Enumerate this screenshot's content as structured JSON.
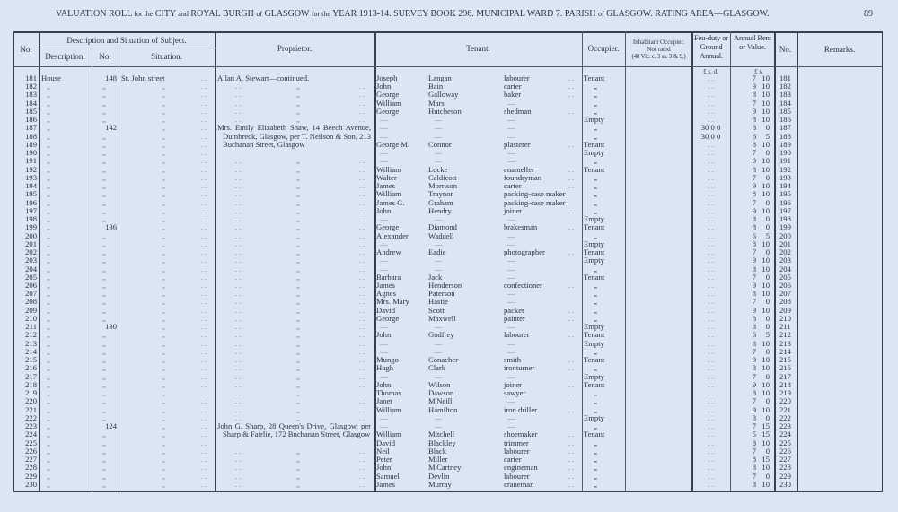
{
  "header": {
    "title_parts": [
      "VALUATION ROLL",
      "for the",
      "CITY",
      "and",
      "ROYAL BURGH",
      "of",
      "GLASGOW",
      "for the",
      "YEAR 1913-14.   SURVEY BOOK 296.   MUNICIPAL WARD 7.   PARISH",
      "of",
      "GLASGOW.   RATING AREA—GLASGOW."
    ],
    "page_number": "89"
  },
  "columns": {
    "no": "No.",
    "description_group": "Description and Situation of Subject.",
    "description": "Description.",
    "number": "No.",
    "situation": "Situation.",
    "proprietor": "Proprietor.",
    "tenant": "Tenant.",
    "occupier": "Occupier.",
    "inhabitant": "Inhabitant Occupier.",
    "inhabitant_sub1": "Not rated",
    "inhabitant_sub2": "(48 Vic. c. 3 ss. 3 & 9.)",
    "feu_duty": "Feu-duty or Ground Annual.",
    "annual_rent": "Annual Rent or Value.",
    "no_right": "No.",
    "remarks": "Remarks.",
    "feu_units": "£  s.  d.",
    "rent_units": "£  s."
  },
  "marks": {
    "ditto": "„",
    "dots": ". .",
    "dash": "—"
  },
  "first_row": {
    "description": "House",
    "situation": "St. John street"
  },
  "proprietors": [
    {
      "start_row": 181,
      "text": "Allan A. Stewart—continued."
    },
    {
      "start_row": 187,
      "text": "Mrs. Emily Elizabeth Shaw, 14 Beech Avenue, Dumbreck, Glasgow, per T. Neilson & Son, 213 Buchanan Street, Glasgow"
    },
    {
      "start_row": 223,
      "text": "John G. Sharp, 28 Queen's Drive, Glasgow, per Sharp & Fairlie, 172 Buchanan Street, Glasgow"
    }
  ],
  "rows": [
    {
      "no": "181",
      "num": "148",
      "first": "Joseph",
      "surname": "Langan",
      "occupation": "labourer",
      "occupier": "Tenant",
      "feu": ". .",
      "rent_l": "7",
      "rent_s": "10"
    },
    {
      "no": "182",
      "num": "„",
      "first": "John",
      "surname": "Bain",
      "occupation": "carter",
      "occupier": "„",
      "feu": ". .",
      "rent_l": "9",
      "rent_s": "10"
    },
    {
      "no": "183",
      "num": "„",
      "first": "George",
      "surname": "Galloway",
      "occupation": "baker",
      "occupier": "„",
      "feu": ". .",
      "rent_l": "8",
      "rent_s": "10"
    },
    {
      "no": "184",
      "num": "„",
      "first": "William",
      "surname": "Mars",
      "occupation": "—",
      "occupier": "„",
      "feu": ". .",
      "rent_l": "7",
      "rent_s": "10"
    },
    {
      "no": "185",
      "num": "„",
      "first": "George",
      "surname": "Hutcheson",
      "occupation": "shedman",
      "occupier": "„",
      "feu": ". .",
      "rent_l": "9",
      "rent_s": "10"
    },
    {
      "no": "186",
      "num": "„",
      "first": "—",
      "surname": "—",
      "occupation": "—",
      "occupier": "Empty",
      "feu": ". .",
      "rent_l": "8",
      "rent_s": "10"
    },
    {
      "no": "187",
      "num": "142",
      "first": "—",
      "surname": "—",
      "occupation": "—",
      "occupier": "„",
      "feu": "30  0  0",
      "rent_l": "8",
      "rent_s": "0"
    },
    {
      "no": "188",
      "num": "„",
      "first": "—",
      "surname": "—",
      "occupation": "—",
      "occupier": "„",
      "feu": "30  0  0",
      "rent_l": "6",
      "rent_s": "5"
    },
    {
      "no": "189",
      "num": "„",
      "first": "George M.",
      "surname": "Connor",
      "occupation": "plasterer",
      "occupier": "Tenant",
      "feu": ". .",
      "rent_l": "8",
      "rent_s": "10"
    },
    {
      "no": "190",
      "num": "„",
      "first": "—",
      "surname": "—",
      "occupation": "—",
      "occupier": "Empty",
      "feu": ". .",
      "rent_l": "7",
      "rent_s": "0"
    },
    {
      "no": "191",
      "num": "„",
      "first": "—",
      "surname": "—",
      "occupation": "—",
      "occupier": "„",
      "feu": ". .",
      "rent_l": "9",
      "rent_s": "10"
    },
    {
      "no": "192",
      "num": "„",
      "first": "William",
      "surname": "Locke",
      "occupation": "enameller",
      "occupier": "Tenant",
      "feu": ". .",
      "rent_l": "8",
      "rent_s": "10"
    },
    {
      "no": "193",
      "num": "„",
      "first": "Walter",
      "surname": "Caldicott",
      "occupation": "foundryman",
      "occupier": "„",
      "feu": ". .",
      "rent_l": "7",
      "rent_s": "0"
    },
    {
      "no": "194",
      "num": "„",
      "first": "James",
      "surname": "Morrison",
      "occupation": "carter",
      "occupier": "„",
      "feu": ". .",
      "rent_l": "9",
      "rent_s": "10"
    },
    {
      "no": "195",
      "num": "„",
      "first": "William",
      "surname": "Traynor",
      "occupation": "packing-case maker",
      "occupier": "„",
      "feu": ". .",
      "rent_l": "8",
      "rent_s": "10"
    },
    {
      "no": "196",
      "num": "„",
      "first": "James G.",
      "surname": "Graham",
      "occupation": "packing-case maker",
      "occupier": "„",
      "feu": ". .",
      "rent_l": "7",
      "rent_s": "0"
    },
    {
      "no": "197",
      "num": "„",
      "first": "John",
      "surname": "Hendry",
      "occupation": "joiner",
      "occupier": "„",
      "feu": ". .",
      "rent_l": "9",
      "rent_s": "10"
    },
    {
      "no": "198",
      "num": "„",
      "first": "—",
      "surname": "—",
      "occupation": "—",
      "occupier": "Empty",
      "feu": ". .",
      "rent_l": "8",
      "rent_s": "0"
    },
    {
      "no": "199",
      "num": "136",
      "first": "George",
      "surname": "Diamond",
      "occupation": "brakesman",
      "occupier": "Tenant",
      "feu": ". .",
      "rent_l": "8",
      "rent_s": "0"
    },
    {
      "no": "200",
      "num": "„",
      "first": "Alexander",
      "surname": "Waddell",
      "occupation": "—",
      "occupier": "„",
      "feu": ". .",
      "rent_l": "6",
      "rent_s": "5"
    },
    {
      "no": "201",
      "num": "„",
      "first": "—",
      "surname": "—",
      "occupation": "—",
      "occupier": "Empty",
      "feu": ". .",
      "rent_l": "8",
      "rent_s": "10"
    },
    {
      "no": "202",
      "num": "„",
      "first": "Andrew",
      "surname": "Eadie",
      "occupation": "photographer",
      "occupier": "Tenant",
      "feu": ". .",
      "rent_l": "7",
      "rent_s": "0"
    },
    {
      "no": "203",
      "num": "„",
      "first": "—",
      "surname": "—",
      "occupation": "—",
      "occupier": "Empty",
      "feu": ". .",
      "rent_l": "9",
      "rent_s": "10"
    },
    {
      "no": "204",
      "num": "„",
      "first": "—",
      "surname": "—",
      "occupation": "—",
      "occupier": "„",
      "feu": ". .",
      "rent_l": "8",
      "rent_s": "10"
    },
    {
      "no": "205",
      "num": "„",
      "first": "Barbara",
      "surname": "Jack",
      "occupation": "—",
      "occupier": "Tenant",
      "feu": ". .",
      "rent_l": "7",
      "rent_s": "0"
    },
    {
      "no": "206",
      "num": "„",
      "first": "James",
      "surname": "Henderson",
      "occupation": "confectioner",
      "occupier": "„",
      "feu": ". .",
      "rent_l": "9",
      "rent_s": "10"
    },
    {
      "no": "207",
      "num": "„",
      "first": "Agnes",
      "surname": "Paterson",
      "occupation": "—",
      "occupier": "„",
      "feu": ". .",
      "rent_l": "8",
      "rent_s": "10"
    },
    {
      "no": "208",
      "num": "„",
      "first": "Mrs. Mary",
      "surname": "Hastie",
      "occupation": "—",
      "occupier": "„",
      "feu": ". .",
      "rent_l": "7",
      "rent_s": "0"
    },
    {
      "no": "209",
      "num": "„",
      "first": "David",
      "surname": "Scott",
      "occupation": "packer",
      "occupier": "„",
      "feu": ". .",
      "rent_l": "9",
      "rent_s": "10"
    },
    {
      "no": "210",
      "num": "„",
      "first": "George",
      "surname": "Maxwell",
      "occupation": "painter",
      "occupier": "„",
      "feu": ". .",
      "rent_l": "8",
      "rent_s": "0"
    },
    {
      "no": "211",
      "num": "130",
      "first": "—",
      "surname": "—",
      "occupation": "—",
      "occupier": "Empty",
      "feu": ". .",
      "rent_l": "8",
      "rent_s": "0"
    },
    {
      "no": "212",
      "num": "„",
      "first": "John",
      "surname": "Godfrey",
      "occupation": "labourer",
      "occupier": "Tenant",
      "feu": ". .",
      "rent_l": "6",
      "rent_s": "5"
    },
    {
      "no": "213",
      "num": "„",
      "first": "—",
      "surname": "—",
      "occupation": "—",
      "occupier": "Empty",
      "feu": ". .",
      "rent_l": "8",
      "rent_s": "10"
    },
    {
      "no": "214",
      "num": "„",
      "first": "—",
      "surname": "—",
      "occupation": "—",
      "occupier": "„",
      "feu": ". .",
      "rent_l": "7",
      "rent_s": "0"
    },
    {
      "no": "215",
      "num": "„",
      "first": "Mungo",
      "surname": "Conacher",
      "occupation": "smith",
      "occupier": "Tenant",
      "feu": ". .",
      "rent_l": "9",
      "rent_s": "10"
    },
    {
      "no": "216",
      "num": "„",
      "first": "Hugh",
      "surname": "Clark",
      "occupation": "ironturner",
      "occupier": "„",
      "feu": ". .",
      "rent_l": "8",
      "rent_s": "10"
    },
    {
      "no": "217",
      "num": "„",
      "first": "—",
      "surname": "—",
      "occupation": "—",
      "occupier": "Empty",
      "feu": ". .",
      "rent_l": "7",
      "rent_s": "0"
    },
    {
      "no": "218",
      "num": "„",
      "first": "John",
      "surname": "Wilson",
      "occupation": "joiner",
      "occupier": "Tenant",
      "feu": ". .",
      "rent_l": "9",
      "rent_s": "10"
    },
    {
      "no": "219",
      "num": "„",
      "first": "Thomas",
      "surname": "Dawson",
      "occupation": "sawyer",
      "occupier": "„",
      "feu": ". .",
      "rent_l": "8",
      "rent_s": "10"
    },
    {
      "no": "220",
      "num": "„",
      "first": "Janet",
      "surname": "M'Neill",
      "occupation": "—",
      "occupier": "„",
      "feu": ". .",
      "rent_l": "7",
      "rent_s": "0"
    },
    {
      "no": "221",
      "num": "„",
      "first": "William",
      "surname": "Hamilton",
      "occupation": "iron driller",
      "occupier": "„",
      "feu": ". .",
      "rent_l": "9",
      "rent_s": "10"
    },
    {
      "no": "222",
      "num": "„",
      "first": "—",
      "surname": "—",
      "occupation": "—",
      "occupier": "Empty",
      "feu": ". .",
      "rent_l": "8",
      "rent_s": "0"
    },
    {
      "no": "223",
      "num": "124",
      "first": "—",
      "surname": "—",
      "occupation": "—",
      "occupier": "„",
      "feu": ". .",
      "rent_l": "7",
      "rent_s": "15"
    },
    {
      "no": "224",
      "num": "„",
      "first": "William",
      "surname": "Mitchell",
      "occupation": "shoemaker",
      "occupier": "Tenant",
      "feu": ". .",
      "rent_l": "5",
      "rent_s": "15"
    },
    {
      "no": "225",
      "num": "„",
      "first": "David",
      "surname": "Blackley",
      "occupation": "trimmer",
      "occupier": "„",
      "feu": ". .",
      "rent_l": "8",
      "rent_s": "10"
    },
    {
      "no": "226",
      "num": "„",
      "first": "Neil",
      "surname": "Black",
      "occupation": "labourer",
      "occupier": "„",
      "feu": ". .",
      "rent_l": "7",
      "rent_s": "0"
    },
    {
      "no": "227",
      "num": "„",
      "first": "Peter",
      "surname": "Miller",
      "occupation": "carter",
      "occupier": "„",
      "feu": ". .",
      "rent_l": "8",
      "rent_s": "15"
    },
    {
      "no": "228",
      "num": "„",
      "first": "John",
      "surname": "M'Cartney",
      "occupation": "engineman",
      "occupier": "„",
      "feu": ". .",
      "rent_l": "8",
      "rent_s": "10"
    },
    {
      "no": "229",
      "num": "„",
      "first": "Samuel",
      "surname": "Devlin",
      "occupation": "labourer",
      "occupier": "„",
      "feu": ". .",
      "rent_l": "7",
      "rent_s": "0"
    },
    {
      "no": "230",
      "num": "„",
      "first": "James",
      "surname": "Murray",
      "occupation": "craneman",
      "occupier": "„",
      "feu": ". .",
      "rent_l": "8",
      "rent_s": "10"
    }
  ]
}
